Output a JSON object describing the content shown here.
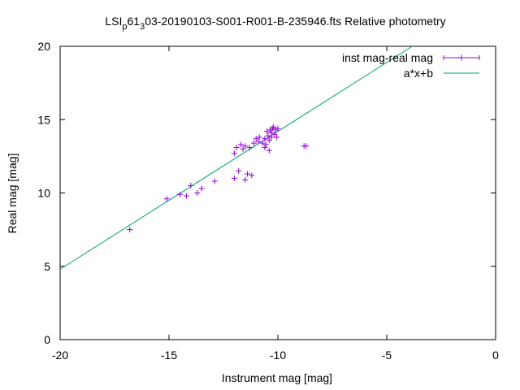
{
  "chart_data": {
    "type": "scatter",
    "title_parts": [
      "LSI",
      "p",
      "61",
      "3",
      "03-20190103-S001-R001-B-235946.fts Relative photometry"
    ],
    "xlabel": "Instrument mag [mag]",
    "ylabel": "Real mag [mag]",
    "xlim": [
      -20,
      0
    ],
    "ylim": [
      0,
      20
    ],
    "xticks": [
      -20,
      -15,
      -10,
      -5,
      0
    ],
    "yticks": [
      0,
      5,
      10,
      15,
      20
    ],
    "grid": false,
    "legend_position": "top-right",
    "series": [
      {
        "name": "inst mag-real mag",
        "kind": "points",
        "color": "#9400d3",
        "points": [
          [
            -16.8,
            7.5
          ],
          [
            -15.1,
            9.6
          ],
          [
            -14.5,
            9.9
          ],
          [
            -14.2,
            9.8
          ],
          [
            -14.0,
            10.5
          ],
          [
            -13.7,
            10.0
          ],
          [
            -13.5,
            10.3
          ],
          [
            -12.9,
            10.8
          ],
          [
            -12.0,
            12.7
          ],
          [
            -11.9,
            13.1
          ],
          [
            -11.7,
            13.3
          ],
          [
            -11.6,
            13.0
          ],
          [
            -11.5,
            13.2
          ],
          [
            -11.3,
            13.1
          ],
          [
            -11.1,
            13.4
          ],
          [
            -11.0,
            13.7
          ],
          [
            -10.9,
            13.5
          ],
          [
            -10.85,
            13.8
          ],
          [
            -10.7,
            13.4
          ],
          [
            -10.6,
            13.7
          ],
          [
            -10.55,
            13.3
          ],
          [
            -10.5,
            14.2
          ],
          [
            -10.45,
            13.9
          ],
          [
            -10.4,
            13.6
          ],
          [
            -10.35,
            14.3
          ],
          [
            -10.3,
            14.1
          ],
          [
            -10.25,
            14.4
          ],
          [
            -10.2,
            14.5
          ],
          [
            -10.15,
            14.0
          ],
          [
            -10.1,
            14.3
          ],
          [
            -10.0,
            14.4
          ],
          [
            -10.05,
            13.8
          ],
          [
            -10.3,
            13.8
          ],
          [
            -10.4,
            12.9
          ],
          [
            -10.6,
            13.1
          ],
          [
            -12.0,
            11.0
          ],
          [
            -11.8,
            11.5
          ],
          [
            -11.5,
            10.9
          ],
          [
            -11.4,
            11.3
          ],
          [
            -11.2,
            11.2
          ],
          [
            -8.8,
            13.2
          ],
          [
            -8.7,
            13.2
          ]
        ]
      },
      {
        "name": "a*x+b",
        "kind": "line",
        "color": "#009e73",
        "slope": 0.94,
        "intercept": 23.6
      }
    ]
  }
}
